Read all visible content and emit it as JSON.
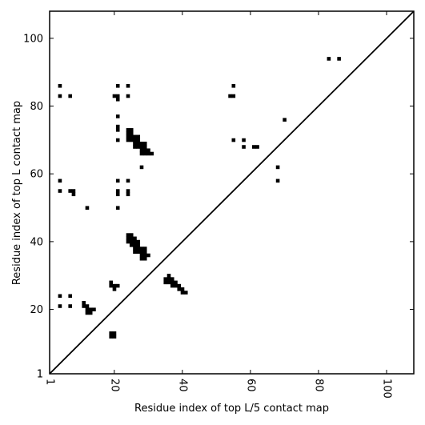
{
  "chart_data": {
    "type": "scatter",
    "title": "",
    "xlabel": "Residue index of top L/5 contact map",
    "ylabel": "Residue index of top L contact map",
    "xlim": [
      1,
      108
    ],
    "ylim": [
      1,
      108
    ],
    "xticks": [
      1,
      20,
      40,
      60,
      80,
      100
    ],
    "yticks": [
      1,
      20,
      40,
      60,
      80,
      100
    ],
    "xtick_labels": [
      "1",
      "20",
      "40",
      "60",
      "80",
      "100"
    ],
    "ytick_labels": [
      "1",
      "20",
      "40",
      "60",
      "80",
      "100"
    ],
    "x_tick_rotation": -90,
    "diagonal": true,
    "grid": false,
    "legend": false,
    "marker_color": "#000000",
    "series": [
      {
        "points": [
          [
            4,
            86
          ],
          [
            4,
            83
          ],
          [
            7,
            83
          ],
          [
            21,
            86
          ],
          [
            24,
            86
          ],
          [
            20,
            83
          ],
          [
            21,
            83
          ],
          [
            24,
            83
          ],
          [
            21,
            82
          ],
          [
            55,
            86
          ],
          [
            54,
            83
          ],
          [
            55,
            83
          ],
          [
            21,
            77
          ],
          [
            21,
            74
          ],
          [
            21,
            73
          ],
          [
            24,
            73
          ],
          [
            25,
            73
          ],
          [
            24,
            72
          ],
          [
            25,
            72
          ],
          [
            24,
            71
          ],
          [
            25,
            71
          ],
          [
            26,
            71
          ],
          [
            27,
            71
          ],
          [
            24,
            70
          ],
          [
            25,
            70
          ],
          [
            26,
            70
          ],
          [
            27,
            70
          ],
          [
            21,
            70
          ],
          [
            55,
            70
          ],
          [
            58,
            70
          ],
          [
            26,
            69
          ],
          [
            27,
            69
          ],
          [
            28,
            69
          ],
          [
            29,
            69
          ],
          [
            26,
            68
          ],
          [
            27,
            68
          ],
          [
            28,
            68
          ],
          [
            29,
            68
          ],
          [
            58,
            68
          ],
          [
            61,
            68
          ],
          [
            62,
            68
          ],
          [
            28,
            67
          ],
          [
            29,
            67
          ],
          [
            30,
            67
          ],
          [
            28,
            66
          ],
          [
            29,
            66
          ],
          [
            30,
            66
          ],
          [
            31,
            66
          ],
          [
            28,
            62
          ],
          [
            68,
            62
          ],
          [
            4,
            58
          ],
          [
            21,
            58
          ],
          [
            24,
            58
          ],
          [
            68,
            58
          ],
          [
            4,
            55
          ],
          [
            7,
            55
          ],
          [
            8,
            55
          ],
          [
            21,
            55
          ],
          [
            24,
            55
          ],
          [
            8,
            54
          ],
          [
            21,
            54
          ],
          [
            24,
            54
          ],
          [
            12,
            50
          ],
          [
            21,
            50
          ],
          [
            24,
            42
          ],
          [
            25,
            42
          ],
          [
            24,
            41
          ],
          [
            25,
            41
          ],
          [
            26,
            41
          ],
          [
            24,
            40
          ],
          [
            25,
            40
          ],
          [
            26,
            40
          ],
          [
            27,
            40
          ],
          [
            25,
            39
          ],
          [
            26,
            39
          ],
          [
            27,
            39
          ],
          [
            26,
            38
          ],
          [
            27,
            38
          ],
          [
            28,
            38
          ],
          [
            29,
            38
          ],
          [
            26,
            37
          ],
          [
            27,
            37
          ],
          [
            28,
            37
          ],
          [
            29,
            37
          ],
          [
            28,
            36
          ],
          [
            29,
            36
          ],
          [
            30,
            36
          ],
          [
            28,
            35
          ],
          [
            29,
            35
          ],
          [
            36,
            30
          ],
          [
            35,
            29
          ],
          [
            36,
            29
          ],
          [
            37,
            29
          ],
          [
            35,
            28
          ],
          [
            36,
            28
          ],
          [
            37,
            28
          ],
          [
            38,
            28
          ],
          [
            37,
            27
          ],
          [
            38,
            27
          ],
          [
            39,
            27
          ],
          [
            39,
            26
          ],
          [
            40,
            26
          ],
          [
            40,
            25
          ],
          [
            41,
            25
          ],
          [
            19,
            28
          ],
          [
            19,
            27
          ],
          [
            20,
            27
          ],
          [
            21,
            27
          ],
          [
            20,
            26
          ],
          [
            4,
            24
          ],
          [
            7,
            24
          ],
          [
            4,
            21
          ],
          [
            7,
            21
          ],
          [
            11,
            22
          ],
          [
            11,
            21
          ],
          [
            12,
            21
          ],
          [
            12,
            20
          ],
          [
            13,
            20
          ],
          [
            14,
            20
          ],
          [
            12,
            19
          ],
          [
            13,
            19
          ],
          [
            19,
            13
          ],
          [
            20,
            13
          ],
          [
            19,
            12
          ],
          [
            20,
            12
          ],
          [
            83,
            94
          ],
          [
            86,
            94
          ],
          [
            70,
            76
          ]
        ]
      }
    ]
  }
}
